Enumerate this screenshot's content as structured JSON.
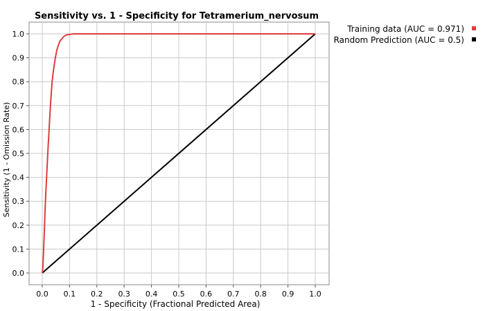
{
  "chart_data": {
    "type": "line",
    "title": "Sensitivity vs. 1 - Specificity for Tetramerium_nervosum",
    "xlabel": "1 - Specificity  (Fractional Predicted Area)",
    "ylabel": "Sensitivity (1 - Omission Rate)",
    "xlim": [
      0,
      1
    ],
    "ylim": [
      0,
      1
    ],
    "x_ticks": [
      "0.0",
      "0.1",
      "0.2",
      "0.3",
      "0.4",
      "0.5",
      "0.6",
      "0.7",
      "0.8",
      "0.9",
      "1.0"
    ],
    "y_ticks": [
      "0.0",
      "0.1",
      "0.2",
      "0.3",
      "0.4",
      "0.5",
      "0.6",
      "0.7",
      "0.8",
      "0.9",
      "1.0"
    ],
    "grid": true,
    "legend_position": "top-right",
    "series": [
      {
        "name": "Training data (AUC = 0.971)",
        "color": "#e03c3c",
        "x": [
          0.0,
          0.002,
          0.004,
          0.006,
          0.008,
          0.01,
          0.012,
          0.015,
          0.018,
          0.021,
          0.024,
          0.027,
          0.03,
          0.033,
          0.036,
          0.04,
          0.044,
          0.048,
          0.053,
          0.058,
          0.065,
          0.072,
          0.08,
          0.088,
          0.095,
          0.105,
          0.115,
          0.13,
          0.2,
          0.4,
          0.6,
          0.8,
          1.0
        ],
        "y": [
          0.0,
          0.02,
          0.07,
          0.13,
          0.19,
          0.25,
          0.31,
          0.38,
          0.45,
          0.52,
          0.58,
          0.64,
          0.7,
          0.75,
          0.8,
          0.84,
          0.87,
          0.9,
          0.93,
          0.95,
          0.97,
          0.98,
          0.99,
          0.995,
          0.997,
          0.998,
          1.0,
          1.0,
          1.0,
          1.0,
          1.0,
          1.0,
          1.0
        ]
      },
      {
        "name": "Random Prediction (AUC = 0.5)",
        "color": "#000000",
        "x": [
          0.0,
          1.0
        ],
        "y": [
          0.0,
          1.0
        ]
      }
    ]
  }
}
